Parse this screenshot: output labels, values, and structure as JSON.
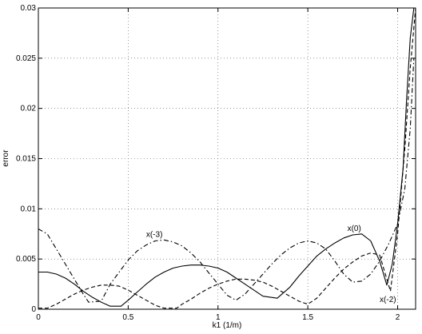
{
  "chart_data": {
    "type": "line",
    "title": "",
    "xlabel": "k1 (1/m)",
    "ylabel": "error",
    "xlim": [
      0,
      2.1
    ],
    "ylim": [
      0,
      0.03
    ],
    "grid": true,
    "x_ticks": [
      0,
      0.5,
      1,
      1.5,
      2
    ],
    "x_tick_labels": [
      "0",
      "0.5",
      "1",
      "1.5",
      "2"
    ],
    "y_ticks": [
      0,
      0.005,
      0.01,
      0.015,
      0.02,
      0.025,
      0.03
    ],
    "y_tick_labels": [
      "0",
      "0.005",
      "0.01",
      "0.015",
      "0.02",
      "0.025",
      "0.03"
    ],
    "series": [
      {
        "name": "x(0)",
        "style": "solid",
        "x": [
          0,
          0.05,
          0.1,
          0.15,
          0.2,
          0.25,
          0.3,
          0.35,
          0.4,
          0.46,
          0.5,
          0.55,
          0.6,
          0.65,
          0.7,
          0.75,
          0.8,
          0.85,
          0.9,
          0.95,
          1.0,
          1.05,
          1.1,
          1.15,
          1.2,
          1.25,
          1.33,
          1.4,
          1.45,
          1.5,
          1.55,
          1.6,
          1.65,
          1.7,
          1.75,
          1.8,
          1.85,
          1.9,
          1.94,
          1.97,
          2.0,
          2.03,
          2.05,
          2.07,
          2.09
        ],
        "y": [
          0.0037,
          0.0037,
          0.0035,
          0.0031,
          0.0025,
          0.0018,
          0.0012,
          0.0007,
          0.0003,
          0.0003,
          0.0009,
          0.0017,
          0.0025,
          0.0032,
          0.0037,
          0.0041,
          0.0043,
          0.0044,
          0.0044,
          0.0043,
          0.0041,
          0.0037,
          0.0031,
          0.0025,
          0.0019,
          0.0013,
          0.0011,
          0.0022,
          0.0033,
          0.0043,
          0.0053,
          0.006,
          0.0066,
          0.0071,
          0.0074,
          0.0075,
          0.0068,
          0.0048,
          0.0024,
          0.0045,
          0.0085,
          0.014,
          0.021,
          0.027,
          0.03
        ]
      },
      {
        "name": "x(-2)",
        "style": "dashed",
        "x": [
          0,
          0.05,
          0.1,
          0.15,
          0.2,
          0.25,
          0.3,
          0.35,
          0.4,
          0.45,
          0.5,
          0.55,
          0.6,
          0.65,
          0.7,
          0.77,
          0.8,
          0.85,
          0.9,
          0.95,
          1.0,
          1.05,
          1.1,
          1.15,
          1.2,
          1.25,
          1.3,
          1.35,
          1.4,
          1.45,
          1.5,
          1.55,
          1.6,
          1.65,
          1.7,
          1.75,
          1.8,
          1.85,
          1.9,
          1.96,
          2.0,
          2.04,
          2.07,
          2.1
        ],
        "y": [
          0.0001,
          0.0001,
          0.0005,
          0.001,
          0.0015,
          0.0019,
          0.0022,
          0.0024,
          0.0024,
          0.0023,
          0.0019,
          0.0014,
          0.0009,
          0.0004,
          0.0001,
          0.0001,
          0.0005,
          0.001,
          0.0016,
          0.0021,
          0.0025,
          0.0028,
          0.003,
          0.003,
          0.0029,
          0.0027,
          0.0023,
          0.0018,
          0.0013,
          0.0008,
          0.0005,
          0.0011,
          0.0021,
          0.0031,
          0.004,
          0.0047,
          0.0053,
          0.0056,
          0.0054,
          0.0018,
          0.0075,
          0.016,
          0.024,
          0.03
        ]
      },
      {
        "name": "x(-3)",
        "style": "dashdot",
        "x": [
          0,
          0.05,
          0.1,
          0.15,
          0.2,
          0.25,
          0.28,
          0.35,
          0.4,
          0.5,
          0.55,
          0.6,
          0.65,
          0.7,
          0.75,
          0.8,
          0.85,
          0.9,
          0.95,
          1.0,
          1.05,
          1.1,
          1.15,
          1.2,
          1.25,
          1.3,
          1.35,
          1.4,
          1.45,
          1.5,
          1.55,
          1.6,
          1.65,
          1.7,
          1.75,
          1.8,
          1.85,
          1.9,
          1.95,
          2.0,
          2.04,
          2.07,
          2.09
        ],
        "y": [
          0.008,
          0.0075,
          0.006,
          0.0045,
          0.003,
          0.0015,
          0.0007,
          0.0008,
          0.0025,
          0.0049,
          0.0058,
          0.0064,
          0.0068,
          0.0069,
          0.0067,
          0.0063,
          0.0056,
          0.0047,
          0.0036,
          0.0025,
          0.0014,
          0.0009,
          0.0015,
          0.0025,
          0.0035,
          0.0045,
          0.0054,
          0.0061,
          0.0066,
          0.0068,
          0.0066,
          0.006,
          0.0048,
          0.0035,
          0.0027,
          0.0028,
          0.0035,
          0.0048,
          0.0065,
          0.0085,
          0.012,
          0.018,
          0.025
        ]
      }
    ],
    "annotations": [
      {
        "text": "x(0)",
        "x": 1.72,
        "y": 0.0078
      },
      {
        "text": "x(-3)",
        "x": 0.6,
        "y": 0.0072
      },
      {
        "text": "x(-2)",
        "x": 1.9,
        "y": 0.0007
      }
    ]
  }
}
